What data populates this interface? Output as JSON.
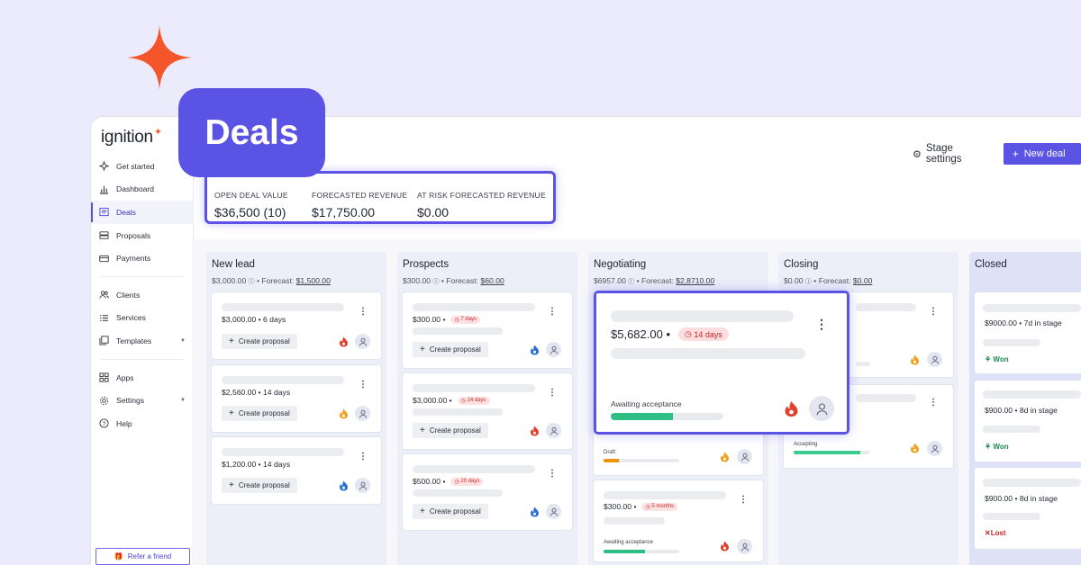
{
  "brand": {
    "logo_text": "ignition",
    "accent": "#5a53e4",
    "orange": "#ff5a2c"
  },
  "badge": {
    "label": "Deals"
  },
  "sidebar": {
    "items": [
      {
        "label": "Get started",
        "icon": "sparkle-icon"
      },
      {
        "label": "Dashboard",
        "icon": "bar-chart-icon"
      },
      {
        "label": "Deals",
        "icon": "kanban-icon",
        "active": true
      },
      {
        "label": "Proposals",
        "icon": "document-icon"
      },
      {
        "label": "Payments",
        "icon": "credit-card-icon"
      },
      {
        "label": "Clients",
        "icon": "users-icon"
      },
      {
        "label": "Services",
        "icon": "list-icon"
      },
      {
        "label": "Templates",
        "icon": "template-icon"
      },
      {
        "label": "Apps",
        "icon": "grid-icon"
      },
      {
        "label": "Settings",
        "icon": "gear-icon"
      },
      {
        "label": "Help",
        "icon": "help-icon"
      }
    ],
    "refer_label": "Refer a friend"
  },
  "toolbar": {
    "stage_settings": "Stage settings",
    "new_deal": "New deal"
  },
  "summary": {
    "open_label": "OPEN DEAL VALUE",
    "open_value": "$36,500 (10)",
    "forecast_label": "FORECASTED REVENUE",
    "forecast_value": "$17,750.00",
    "risk_label": "AT RISK FORECASTED REVENUE",
    "risk_value": "$0.00"
  },
  "columns": {
    "new_lead": {
      "title": "New lead",
      "total": "$3,000.00",
      "forecast_prefix": "• Forecast:",
      "forecast": "$1,500.00",
      "cards": [
        {
          "amount": "$3,000.00 • 6 days",
          "button": "Create proposal",
          "heat": "hot"
        },
        {
          "amount": "$2,560.00 • 14 days",
          "button": "Create proposal",
          "heat": "warm"
        },
        {
          "amount": "$1,200.00 • 14 days",
          "button": "Create proposal",
          "heat": "cold"
        }
      ]
    },
    "prospects": {
      "title": "Prospects",
      "total": "$300.00",
      "forecast_prefix": "• Forecast:",
      "forecast": "$60.00",
      "cards": [
        {
          "amount": "$300.00 •",
          "tag": "7 days",
          "button": "Create proposal",
          "heat": "cold"
        },
        {
          "amount": "$3,000.00 •",
          "tag": "14 days",
          "button": "Create proposal",
          "heat": "hot"
        },
        {
          "amount": "$500.00 •",
          "tag": "20 days",
          "button": "Create proposal",
          "heat": "cold"
        }
      ]
    },
    "negotiating": {
      "title": "Negotiating",
      "total": "$6957.00",
      "forecast_prefix": "• Forecast:",
      "forecast": "$2,8710.00",
      "featured": {
        "amount": "$5,682.00 •",
        "tag": "14 days",
        "status": "Awaiting acceptance",
        "progress": 0.55
      },
      "card2": {
        "status": "Draft",
        "progress": 0.2
      },
      "card3": {
        "amount": "$300.00 •",
        "tag": "5 months",
        "status": "Awaiting acceptance",
        "progress": 0.55
      }
    },
    "closing": {
      "title": "Closing",
      "total": "$0.00",
      "forecast_prefix": "• Forecast:",
      "forecast": "$0.00",
      "card2": {
        "status": "Accepting",
        "progress": 0.88
      }
    },
    "closed": {
      "title": "Closed",
      "cards": [
        {
          "amount": "$9000.00 • 7d in stage",
          "result": "Won"
        },
        {
          "amount": "$900.00 • 8d in stage",
          "result": "Won"
        },
        {
          "amount": "$900.00 • 8d in stage",
          "result": "Lost"
        }
      ]
    }
  }
}
